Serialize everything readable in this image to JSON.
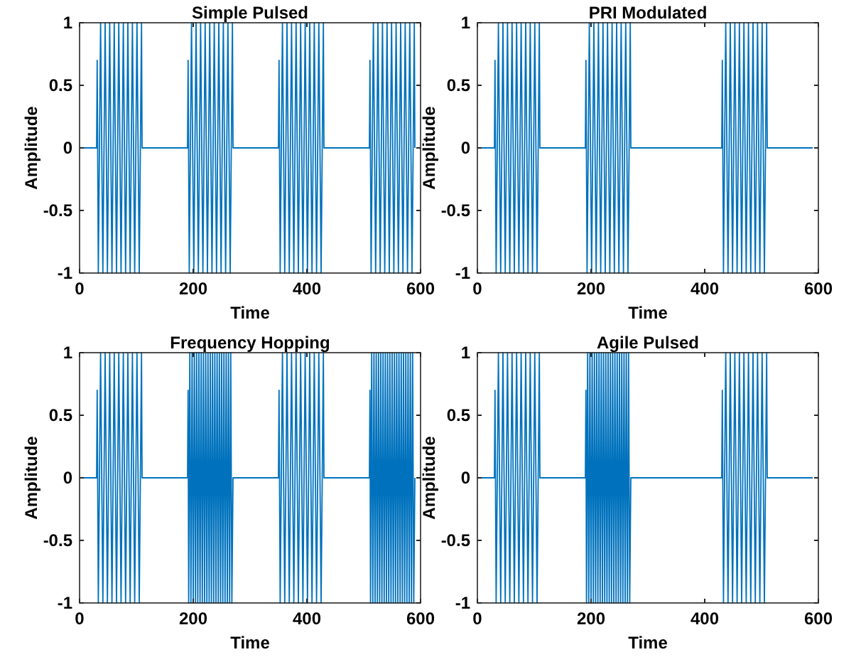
{
  "chart_data": [
    {
      "type": "line",
      "title": "Simple Pulsed",
      "xlabel": "Time",
      "ylabel": "Amplitude",
      "color": "#0072bd",
      "xlim": [
        0,
        600
      ],
      "ylim": [
        -1,
        1
      ],
      "xticks": [
        0,
        200,
        400,
        600
      ],
      "yticks": [
        -1,
        -0.5,
        0,
        0.5,
        1
      ],
      "grid": false,
      "x": [
        0,
        30,
        31,
        33,
        37,
        41,
        45,
        49,
        53,
        57,
        61,
        65,
        69,
        73,
        77,
        81,
        85,
        89,
        93,
        97,
        101,
        105,
        109,
        110,
        190,
        191,
        193,
        197,
        201,
        205,
        209,
        213,
        217,
        221,
        225,
        229,
        233,
        237,
        241,
        245,
        249,
        253,
        257,
        261,
        265,
        269,
        270,
        350,
        351,
        353,
        357,
        361,
        365,
        369,
        373,
        377,
        381,
        385,
        389,
        393,
        397,
        401,
        405,
        409,
        413,
        417,
        421,
        425,
        429,
        430,
        510,
        511,
        513,
        517,
        521,
        525,
        529,
        533,
        537,
        541,
        545,
        549,
        553,
        557,
        561,
        565,
        569,
        573,
        577,
        581,
        585,
        589,
        590
      ],
      "values": [
        0,
        0,
        0.7,
        -1,
        1,
        -1,
        1,
        -1,
        1,
        -1,
        1,
        -1,
        1,
        -1,
        1,
        -1,
        1,
        -1,
        1,
        -1,
        1,
        -1,
        1,
        0,
        0,
        0.7,
        -1,
        1,
        -1,
        1,
        -1,
        1,
        -1,
        1,
        -1,
        1,
        -1,
        1,
        -1,
        1,
        -1,
        1,
        -1,
        1,
        -1,
        1,
        0,
        0,
        0.7,
        -1,
        1,
        -1,
        1,
        -1,
        1,
        -1,
        1,
        -1,
        1,
        -1,
        1,
        -1,
        1,
        -1,
        1,
        -1,
        1,
        -1,
        1,
        0,
        0,
        0.7,
        -1,
        1,
        -1,
        1,
        -1,
        1,
        -1,
        1,
        -1,
        1,
        -1,
        1,
        -1,
        1,
        -1,
        1,
        -1,
        1,
        -1,
        1,
        0
      ]
    },
    {
      "type": "line",
      "title": "PRI Modulated",
      "xlabel": "Time",
      "ylabel": "Amplitude",
      "color": "#0072bd",
      "xlim": [
        0,
        600
      ],
      "ylim": [
        -1,
        1
      ],
      "xticks": [
        0,
        200,
        400,
        600
      ],
      "yticks": [
        -1,
        -0.5,
        0,
        0.5,
        1
      ],
      "grid": false,
      "x": [
        0,
        30,
        31,
        33,
        37,
        41,
        45,
        49,
        53,
        57,
        61,
        65,
        69,
        73,
        77,
        81,
        85,
        89,
        93,
        97,
        101,
        105,
        109,
        110,
        190,
        191,
        193,
        197,
        201,
        205,
        209,
        213,
        217,
        221,
        225,
        229,
        233,
        237,
        241,
        245,
        249,
        253,
        257,
        261,
        265,
        269,
        270,
        430,
        431,
        433,
        437,
        441,
        445,
        449,
        453,
        457,
        461,
        465,
        469,
        473,
        477,
        481,
        485,
        489,
        493,
        497,
        501,
        505,
        509,
        510,
        590
      ],
      "values": [
        0,
        0,
        0.7,
        -1,
        1,
        -1,
        1,
        -1,
        1,
        -1,
        1,
        -1,
        1,
        -1,
        1,
        -1,
        1,
        -1,
        1,
        -1,
        1,
        -1,
        1,
        0,
        0,
        0.7,
        -1,
        1,
        -1,
        1,
        -1,
        1,
        -1,
        1,
        -1,
        1,
        -1,
        1,
        -1,
        1,
        -1,
        1,
        -1,
        1,
        -1,
        1,
        0,
        0,
        0.7,
        -1,
        1,
        -1,
        1,
        -1,
        1,
        -1,
        1,
        -1,
        1,
        -1,
        1,
        -1,
        1,
        -1,
        1,
        -1,
        1,
        -1,
        1,
        0,
        0
      ]
    },
    {
      "type": "line",
      "title": "Frequency Hopping",
      "xlabel": "Time",
      "ylabel": "Amplitude",
      "color": "#0072bd",
      "xlim": [
        0,
        600
      ],
      "ylim": [
        -1,
        1
      ],
      "xticks": [
        0,
        200,
        400,
        600
      ],
      "yticks": [
        -1,
        -0.5,
        0,
        0.5,
        1
      ],
      "grid": false,
      "x": [
        0,
        30,
        31,
        33,
        37,
        41,
        45,
        49,
        53,
        57,
        61,
        65,
        69,
        73,
        77,
        81,
        85,
        89,
        93,
        97,
        101,
        105,
        109,
        110,
        190,
        191,
        192,
        194,
        196,
        198,
        200,
        202,
        204,
        206,
        208,
        210,
        212,
        214,
        216,
        218,
        220,
        222,
        224,
        226,
        228,
        230,
        232,
        234,
        236,
        238,
        240,
        242,
        244,
        246,
        248,
        250,
        252,
        254,
        256,
        258,
        260,
        262,
        264,
        266,
        268,
        270,
        350,
        351,
        353,
        357,
        361,
        365,
        369,
        373,
        377,
        381,
        385,
        389,
        393,
        397,
        401,
        405,
        409,
        413,
        417,
        421,
        425,
        429,
        430,
        510,
        511,
        512,
        514,
        516,
        518,
        520,
        522,
        524,
        526,
        528,
        530,
        532,
        534,
        536,
        538,
        540,
        542,
        544,
        546,
        548,
        550,
        552,
        554,
        556,
        558,
        560,
        562,
        564,
        566,
        568,
        570,
        572,
        574,
        576,
        578,
        580,
        582,
        584,
        586,
        588,
        590
      ],
      "values": [
        0,
        0,
        0.7,
        -1,
        1,
        -1,
        1,
        -1,
        1,
        -1,
        1,
        -1,
        1,
        -1,
        1,
        -1,
        1,
        -1,
        1,
        -1,
        1,
        -1,
        1,
        0,
        0,
        0.7,
        -1,
        1,
        -1,
        1,
        -1,
        1,
        -1,
        1,
        -1,
        1,
        -1,
        1,
        -1,
        1,
        -1,
        1,
        -1,
        1,
        -1,
        1,
        -1,
        1,
        -1,
        1,
        -1,
        1,
        -1,
        1,
        -1,
        1,
        -1,
        1,
        -1,
        1,
        -1,
        1,
        -1,
        1,
        -1,
        0,
        0,
        0.7,
        -1,
        1,
        -1,
        1,
        -1,
        1,
        -1,
        1,
        -1,
        1,
        -1,
        1,
        -1,
        1,
        -1,
        1,
        -1,
        1,
        -1,
        1,
        0,
        0,
        0.7,
        -1,
        1,
        -1,
        1,
        -1,
        1,
        -1,
        1,
        -1,
        1,
        -1,
        1,
        -1,
        1,
        -1,
        1,
        -1,
        1,
        -1,
        1,
        -1,
        1,
        -1,
        1,
        -1,
        1,
        -1,
        1,
        -1,
        1,
        -1,
        1,
        -1,
        1,
        -1,
        1,
        -1,
        1,
        -1,
        0
      ]
    },
    {
      "type": "line",
      "title": "Agile Pulsed",
      "xlabel": "Time",
      "ylabel": "Amplitude",
      "color": "#0072bd",
      "xlim": [
        0,
        600
      ],
      "ylim": [
        -1,
        1
      ],
      "xticks": [
        0,
        200,
        400,
        600
      ],
      "yticks": [
        -1,
        -0.5,
        0,
        0.5,
        1
      ],
      "grid": false,
      "x": [
        0,
        30,
        31,
        33,
        37,
        41,
        45,
        49,
        53,
        57,
        61,
        65,
        69,
        73,
        77,
        81,
        85,
        89,
        93,
        97,
        101,
        105,
        109,
        110,
        190,
        191,
        192,
        194,
        196,
        198,
        200,
        202,
        204,
        206,
        208,
        210,
        212,
        214,
        216,
        218,
        220,
        222,
        224,
        226,
        228,
        230,
        232,
        234,
        236,
        238,
        240,
        242,
        244,
        246,
        248,
        250,
        252,
        254,
        256,
        258,
        260,
        262,
        264,
        266,
        268,
        270,
        430,
        431,
        433,
        437,
        441,
        445,
        449,
        453,
        457,
        461,
        465,
        469,
        473,
        477,
        481,
        485,
        489,
        493,
        497,
        501,
        505,
        509,
        510,
        590
      ],
      "values": [
        0,
        0,
        0.7,
        -1,
        1,
        -1,
        1,
        -1,
        1,
        -1,
        1,
        -1,
        1,
        -1,
        1,
        -1,
        1,
        -1,
        1,
        -1,
        1,
        -1,
        1,
        0,
        0,
        0.7,
        -1,
        1,
        -1,
        1,
        -1,
        1,
        -1,
        1,
        -1,
        1,
        -1,
        1,
        -1,
        1,
        -1,
        1,
        -1,
        1,
        -1,
        1,
        -1,
        1,
        -1,
        1,
        -1,
        1,
        -1,
        1,
        -1,
        1,
        -1,
        1,
        -1,
        1,
        -1,
        1,
        -1,
        1,
        -1,
        0,
        0,
        0.7,
        -1,
        1,
        -1,
        1,
        -1,
        1,
        -1,
        1,
        -1,
        1,
        -1,
        1,
        -1,
        1,
        -1,
        1,
        -1,
        1,
        -1,
        1,
        0,
        0
      ]
    }
  ]
}
